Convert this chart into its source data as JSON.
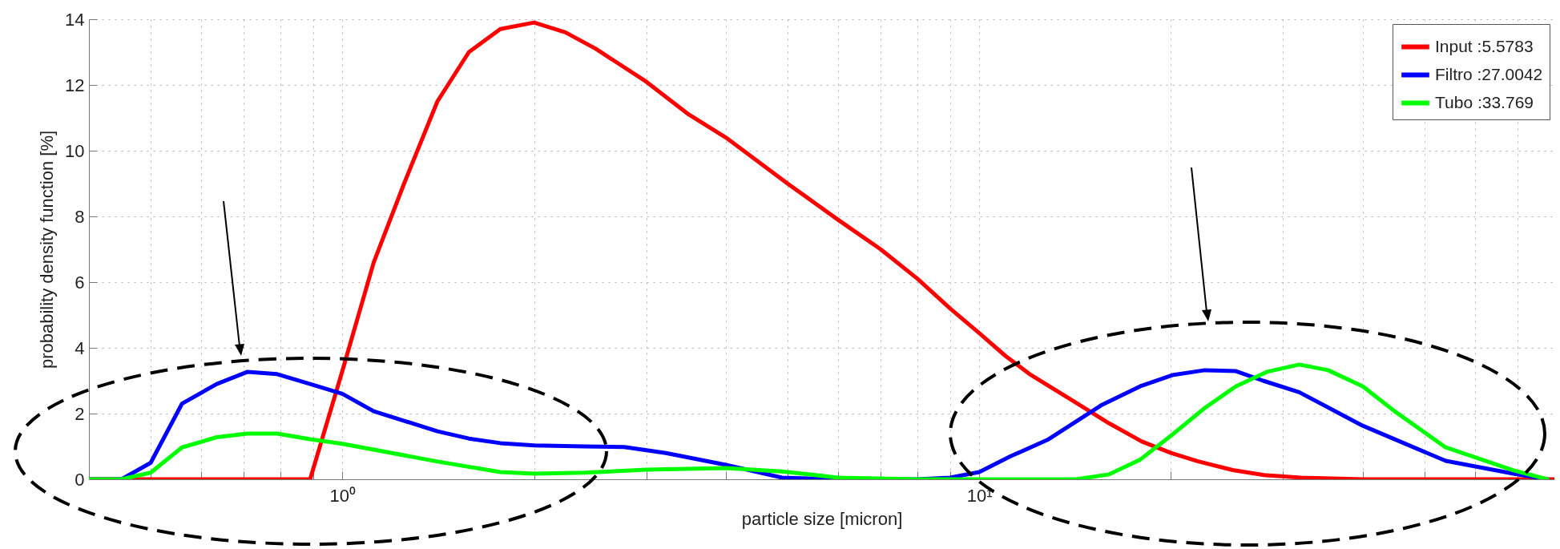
{
  "chart_data": {
    "type": "line",
    "xlabel": "particle size [micron]",
    "ylabel": "probability density function [%]",
    "log": "x",
    "xlim": [
      0.4,
      80
    ],
    "ylim": [
      0,
      14
    ],
    "xticks": [
      {
        "value": 0.5,
        "label": null
      },
      {
        "value": 0.6,
        "label": null
      },
      {
        "value": 0.7,
        "label": null
      },
      {
        "value": 0.8,
        "label": null
      },
      {
        "value": 0.9,
        "label": null
      },
      {
        "value": 1,
        "label": "10⁰"
      },
      {
        "value": 2,
        "label": null
      },
      {
        "value": 3,
        "label": null
      },
      {
        "value": 4,
        "label": null
      },
      {
        "value": 5,
        "label": null
      },
      {
        "value": 6,
        "label": null
      },
      {
        "value": 7,
        "label": null
      },
      {
        "value": 8,
        "label": null
      },
      {
        "value": 9,
        "label": null
      },
      {
        "value": 10,
        "label": "10¹"
      },
      {
        "value": 20,
        "label": null
      },
      {
        "value": 30,
        "label": null
      },
      {
        "value": 40,
        "label": null
      },
      {
        "value": 50,
        "label": null
      },
      {
        "value": 60,
        "label": null
      },
      {
        "value": 70,
        "label": null
      }
    ],
    "yticks": [
      0,
      2,
      4,
      6,
      8,
      10,
      12,
      14
    ],
    "grid": true,
    "legend": "top right",
    "series": [
      {
        "name": "Input :5.5783",
        "color": "#ff0000",
        "x": [
          0.4,
          0.5,
          0.6,
          0.7,
          0.8,
          0.89,
          1,
          1.12,
          1.25,
          1.41,
          1.58,
          1.77,
          2,
          2.24,
          2.5,
          3,
          3.5,
          4,
          5,
          6,
          7,
          8,
          9,
          10,
          11,
          12,
          14,
          16,
          18,
          20,
          22,
          25,
          28,
          32,
          40,
          50,
          60,
          70,
          80
        ],
        "values": [
          0,
          0,
          0,
          0,
          0,
          0,
          3.3,
          6.6,
          9.0,
          11.5,
          13.0,
          13.7,
          13.9,
          13.6,
          13.1,
          12.1,
          11.1,
          10.4,
          9.0,
          7.9,
          7.0,
          6.1,
          5.2,
          4.45,
          3.75,
          3.2,
          2.4,
          1.7,
          1.15,
          0.8,
          0.55,
          0.28,
          0.13,
          0.05,
          0,
          0,
          0,
          0,
          0
        ]
      },
      {
        "name": "Filtro :27.0042",
        "color": "#0000ff",
        "x": [
          0.4,
          0.45,
          0.5,
          0.56,
          0.635,
          0.71,
          0.79,
          0.89,
          1,
          1.12,
          1.41,
          1.58,
          1.77,
          2,
          2.4,
          2.77,
          3.22,
          4,
          4.9,
          6,
          8,
          9,
          10,
          11.2,
          12.8,
          15.6,
          17.9,
          20.1,
          22.6,
          25.3,
          27.9,
          31.8,
          40,
          54,
          69,
          78
        ],
        "values": [
          0,
          0,
          0.5,
          2.3,
          2.9,
          3.27,
          3.2,
          2.9,
          2.6,
          2.07,
          1.46,
          1.24,
          1.1,
          1.03,
          1.0,
          0.98,
          0.8,
          0.44,
          0.05,
          0,
          0,
          0.05,
          0.22,
          0.7,
          1.2,
          2.27,
          2.83,
          3.17,
          3.32,
          3.29,
          3.0,
          2.65,
          1.63,
          0.56,
          0.17,
          0
        ]
      },
      {
        "name": "Tubo :33.769",
        "color": "#00ff00",
        "x": [
          0.4,
          0.45,
          0.5,
          0.56,
          0.635,
          0.71,
          0.79,
          0.89,
          1,
          1.41,
          1.77,
          2,
          2.4,
          3,
          4,
          4.9,
          6,
          8,
          10,
          12,
          14.2,
          16,
          17.9,
          20.1,
          22.6,
          25.3,
          28.3,
          31.8,
          35.3,
          40,
          44.9,
          54,
          69,
          78
        ],
        "values": [
          0,
          0,
          0.2,
          0.97,
          1.28,
          1.39,
          1.39,
          1.22,
          1.08,
          0.54,
          0.22,
          0.17,
          0.2,
          0.29,
          0.34,
          0.24,
          0.05,
          0,
          0,
          0,
          0,
          0.15,
          0.6,
          1.36,
          2.17,
          2.83,
          3.27,
          3.49,
          3.32,
          2.83,
          2.07,
          0.97,
          0.27,
          0
        ]
      }
    ]
  }
}
